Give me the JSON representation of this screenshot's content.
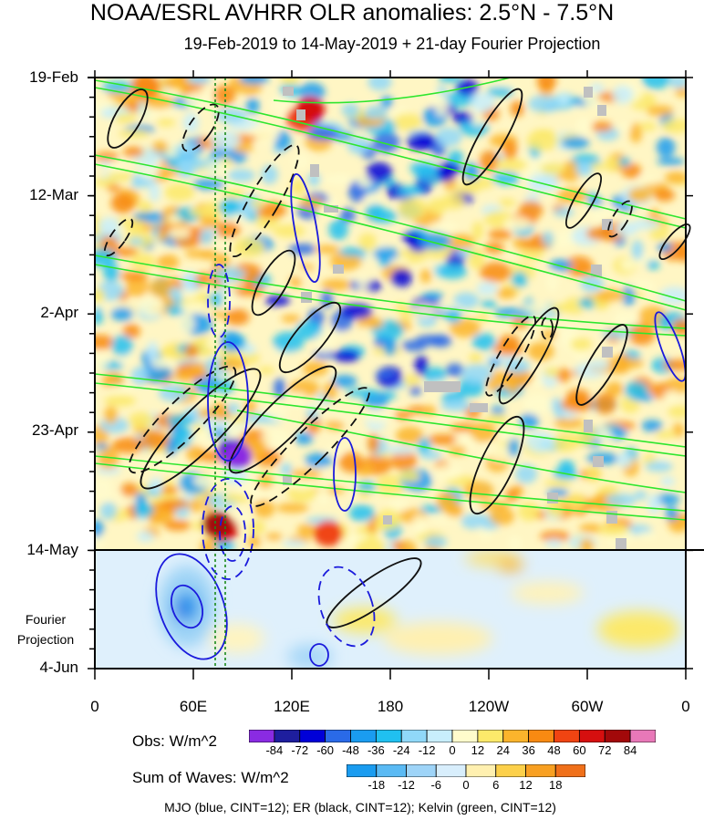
{
  "chart_data": {
    "type": "heatmap",
    "title": "NOAA/ESRL AVHRR OLR anomalies: 2.5°N - 7.5°N",
    "subtitle": "19-Feb-2019 to 14-May-2019 + 21-day Fourier Projection",
    "y_ticks": [
      "19-Feb",
      "12-Mar",
      "2-Apr",
      "23-Apr",
      "14-May",
      "4-Jun"
    ],
    "x_ticks": [
      "0",
      "60E",
      "120E",
      "180",
      "120W",
      "60W",
      "0"
    ],
    "projection_label": "Fourier Projection",
    "colorbar_obs": {
      "label": "Obs: W/m^2",
      "ticks": [
        "-84",
        "-72",
        "-60",
        "-48",
        "-36",
        "-24",
        "-12",
        "0",
        "12",
        "24",
        "36",
        "48",
        "60",
        "72",
        "84"
      ],
      "colors": [
        "#8a2be2",
        "#1e1e9e",
        "#0000d8",
        "#2a6ae8",
        "#1a9cf0",
        "#20c0f0",
        "#90d8f8",
        "#c8eefc",
        "#fffccc",
        "#fce96a",
        "#fbb42c",
        "#f88a12",
        "#f04412",
        "#d60f0f",
        "#a2090a",
        "#e878b8"
      ]
    },
    "colorbar_waves": {
      "label": "Sum of Waves: W/m^2",
      "ticks": [
        "-18",
        "-12",
        "-6",
        "0",
        "6",
        "12",
        "18"
      ],
      "colors": [
        "#1a9cf0",
        "#5abaf4",
        "#9ed4f8",
        "#d8eefc",
        "#fff0b0",
        "#fcd04a",
        "#f8a022",
        "#f0701a"
      ]
    },
    "legend_note": "MJO (blue, CINT=12); ER (black, CINT=12); Kelvin (green, CINT=12)"
  }
}
